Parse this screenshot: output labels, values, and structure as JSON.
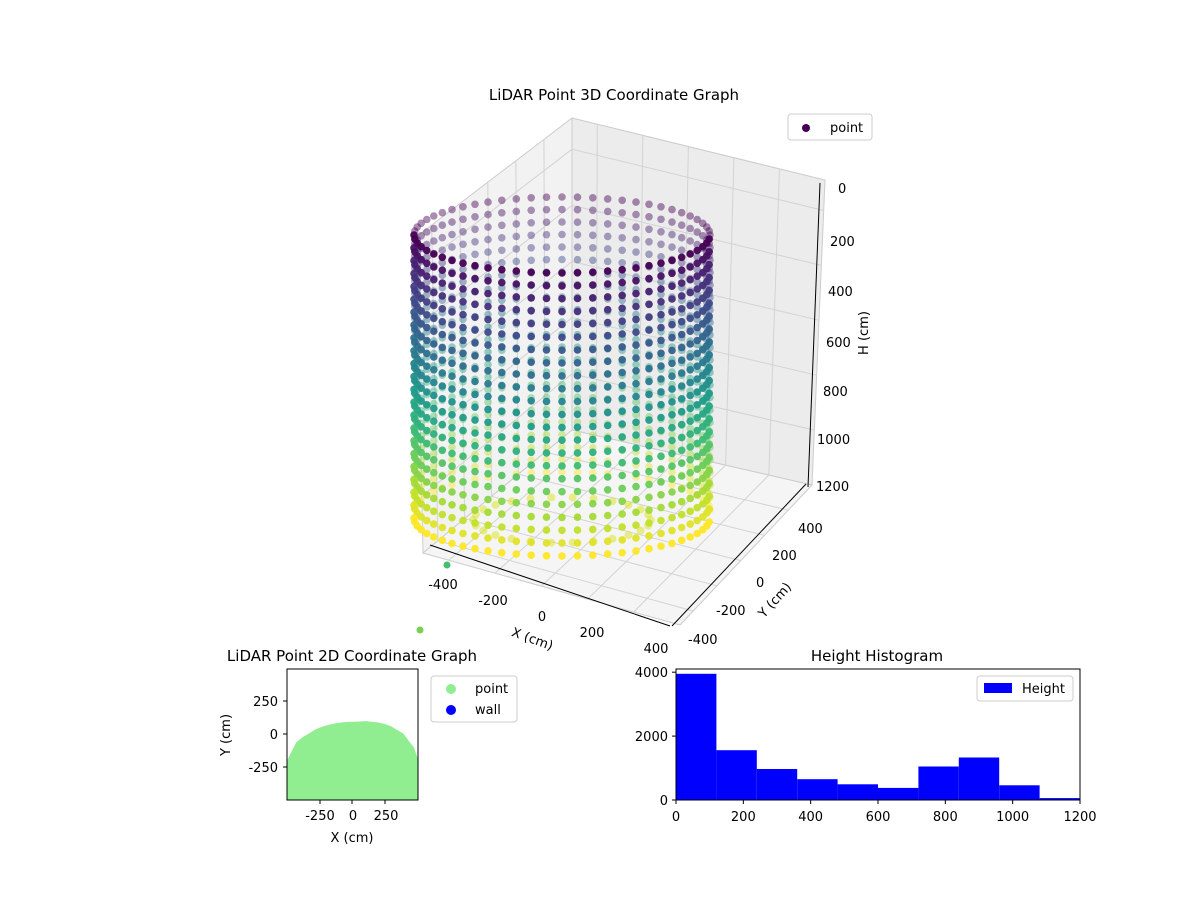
{
  "chart_data": [
    {
      "type": "scatter",
      "title": "LiDAR Point 3D Coordinate Graph",
      "xlabel": "X (cm)",
      "ylabel": "Y (cm)",
      "zlabel": "H (cm)",
      "x_ticks": [
        "-400",
        "-200",
        "0",
        "200",
        "400"
      ],
      "y_ticks": [
        "-400",
        "-200",
        "0",
        "200",
        "400"
      ],
      "z_ticks": [
        "0",
        "200",
        "400",
        "600",
        "800",
        "1000",
        "1200"
      ],
      "xlim": [
        -450,
        450
      ],
      "ylim": [
        -450,
        450
      ],
      "zlim": [
        1200,
        0
      ],
      "legend": [
        "point"
      ],
      "legend_position": "top-right",
      "colormap": "viridis",
      "shape": "cylindrical wall of points, radius ≈ 440 cm, height 0–1200 cm",
      "grid": true
    },
    {
      "type": "scatter",
      "title": "LiDAR Point 2D Coordinate Graph",
      "xlabel": "X (cm)",
      "ylabel": "Y (cm)",
      "x_ticks": [
        "-250",
        "0",
        "250"
      ],
      "y_ticks": [
        "250",
        "0",
        "-250"
      ],
      "xlim": [
        -500,
        500
      ],
      "ylim": [
        -500,
        500
      ],
      "series": [
        {
          "name": "point",
          "color": "#90ee90"
        },
        {
          "name": "wall",
          "color": "#0000ff"
        }
      ],
      "outline_x": [
        -500,
        -480,
        -430,
        -380,
        -330,
        -280,
        -230,
        -180,
        -130,
        -80,
        -30,
        20,
        70,
        100,
        140,
        190,
        240,
        290,
        340,
        390,
        430,
        470,
        500
      ],
      "outline_y": [
        -200,
        -160,
        -60,
        -20,
        10,
        40,
        60,
        75,
        85,
        92,
        96,
        98,
        100,
        102,
        98,
        92,
        82,
        65,
        35,
        5,
        -50,
        -100,
        -190
      ],
      "legend_position": "outside-right",
      "grid": false
    },
    {
      "type": "bar",
      "title": "Height Histogram",
      "xlabel": "",
      "ylabel": "",
      "x_ticks": [
        "0",
        "200",
        "400",
        "600",
        "800",
        "1000",
        "1200"
      ],
      "y_ticks": [
        "0",
        "2000",
        "4000"
      ],
      "xlim": [
        0,
        1200
      ],
      "ylim": [
        0,
        4100
      ],
      "bin_edges": [
        0,
        120,
        240,
        360,
        480,
        600,
        720,
        840,
        960,
        1080,
        1200
      ],
      "values": [
        3950,
        1560,
        970,
        650,
        490,
        380,
        1050,
        1330,
        460,
        60
      ],
      "series": [
        {
          "name": "Height",
          "color": "#0000ff"
        }
      ],
      "legend_position": "top-right",
      "grid": false
    }
  ]
}
